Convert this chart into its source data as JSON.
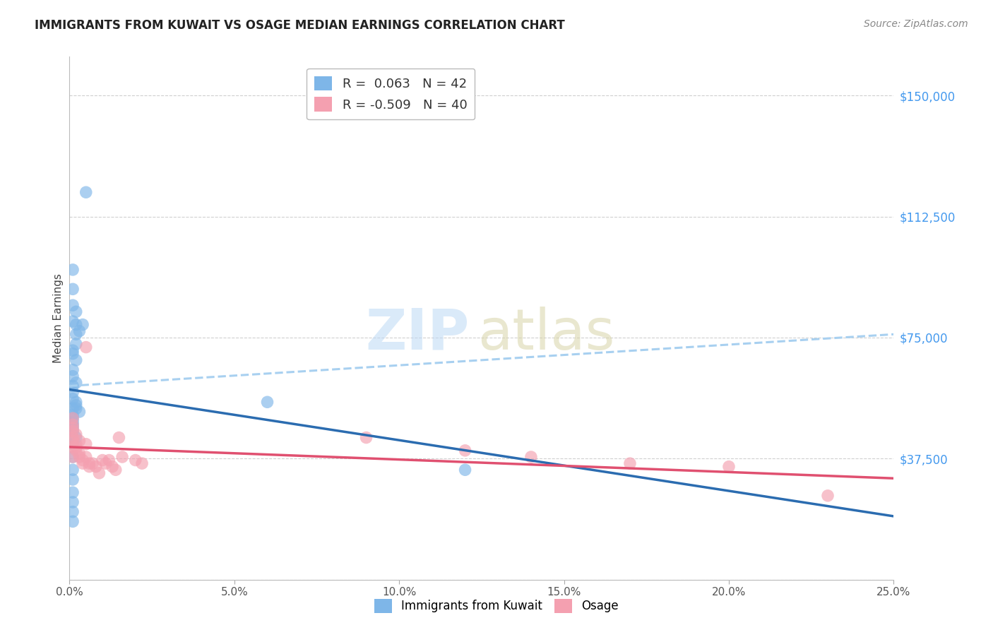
{
  "title": "IMMIGRANTS FROM KUWAIT VS OSAGE MEDIAN EARNINGS CORRELATION CHART",
  "source": "Source: ZipAtlas.com",
  "ylabel": "Median Earnings",
  "xlim": [
    0.0,
    0.25
  ],
  "ylim": [
    0,
    162000
  ],
  "scatter_blue": [
    [
      0.001,
      90000
    ],
    [
      0.001,
      85000
    ],
    [
      0.001,
      80000
    ],
    [
      0.002,
      79000
    ],
    [
      0.002,
      76000
    ],
    [
      0.002,
      73000
    ],
    [
      0.001,
      70000
    ],
    [
      0.002,
      68000
    ],
    [
      0.001,
      65000
    ],
    [
      0.001,
      63000
    ],
    [
      0.002,
      61000
    ],
    [
      0.001,
      60000
    ],
    [
      0.001,
      58000
    ],
    [
      0.001,
      56000
    ],
    [
      0.002,
      55000
    ],
    [
      0.002,
      54000
    ],
    [
      0.002,
      53000
    ],
    [
      0.003,
      52000
    ],
    [
      0.001,
      51000
    ],
    [
      0.001,
      50000
    ],
    [
      0.001,
      49000
    ],
    [
      0.001,
      48000
    ],
    [
      0.001,
      47000
    ],
    [
      0.001,
      46000
    ],
    [
      0.002,
      44000
    ],
    [
      0.001,
      42000
    ],
    [
      0.001,
      38000
    ],
    [
      0.001,
      34000
    ],
    [
      0.001,
      31000
    ],
    [
      0.001,
      27000
    ],
    [
      0.001,
      24000
    ],
    [
      0.001,
      21000
    ],
    [
      0.001,
      18000
    ],
    [
      0.005,
      120000
    ],
    [
      0.004,
      79000
    ],
    [
      0.06,
      55000
    ],
    [
      0.12,
      34000
    ],
    [
      0.001,
      96000
    ],
    [
      0.002,
      83000
    ],
    [
      0.003,
      77000
    ],
    [
      0.001,
      71000
    ],
    [
      0.001,
      53000
    ]
  ],
  "scatter_pink": [
    [
      0.001,
      50000
    ],
    [
      0.001,
      48000
    ],
    [
      0.001,
      47000
    ],
    [
      0.001,
      46000
    ],
    [
      0.002,
      45000
    ],
    [
      0.001,
      44000
    ],
    [
      0.001,
      43000
    ],
    [
      0.002,
      42000
    ],
    [
      0.001,
      41000
    ],
    [
      0.002,
      41000
    ],
    [
      0.003,
      43000
    ],
    [
      0.002,
      40000
    ],
    [
      0.003,
      39000
    ],
    [
      0.001,
      38000
    ],
    [
      0.003,
      38000
    ],
    [
      0.004,
      37000
    ],
    [
      0.004,
      36000
    ],
    [
      0.005,
      42000
    ],
    [
      0.005,
      38000
    ],
    [
      0.006,
      36000
    ],
    [
      0.006,
      35000
    ],
    [
      0.007,
      36000
    ],
    [
      0.008,
      35000
    ],
    [
      0.009,
      33000
    ],
    [
      0.01,
      37000
    ],
    [
      0.011,
      36000
    ],
    [
      0.012,
      37000
    ],
    [
      0.013,
      35000
    ],
    [
      0.014,
      34000
    ],
    [
      0.015,
      44000
    ],
    [
      0.016,
      38000
    ],
    [
      0.02,
      37000
    ],
    [
      0.022,
      36000
    ],
    [
      0.005,
      72000
    ],
    [
      0.09,
      44000
    ],
    [
      0.12,
      40000
    ],
    [
      0.14,
      38000
    ],
    [
      0.17,
      36000
    ],
    [
      0.2,
      35000
    ],
    [
      0.23,
      26000
    ]
  ],
  "blue_scatter_color": "#7EB6E8",
  "pink_scatter_color": "#F4A0B0",
  "blue_line_color": "#2B6CB0",
  "pink_line_color": "#E05070",
  "blue_dash_color": "#A8D0F0",
  "grid_color": "#D0D0D0",
  "background_color": "#FFFFFF",
  "ytick_color": "#4499EE",
  "xtick_color": "#555555",
  "yticks": [
    0,
    37500,
    75000,
    112500,
    150000
  ],
  "ytick_labels": [
    "",
    "$37,500",
    "$75,000",
    "$112,500",
    "$150,000"
  ],
  "xticks": [
    0.0,
    0.05,
    0.1,
    0.15,
    0.2,
    0.25
  ],
  "xtick_labels": [
    "0.0%",
    "5.0%",
    "10.0%",
    "15.0%",
    "20.0%",
    "25.0%"
  ]
}
